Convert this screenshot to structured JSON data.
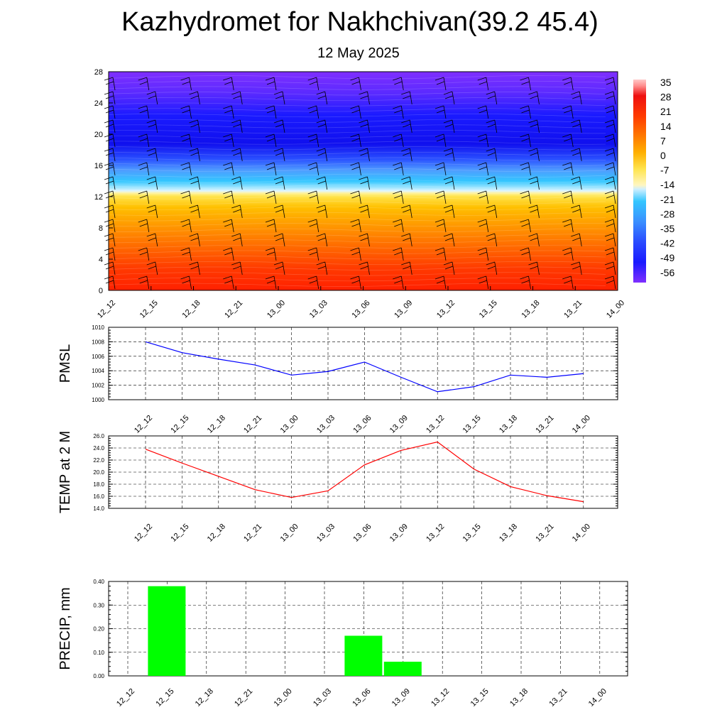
{
  "header": {
    "title": "Kazhydromet for Nakhchivan(39.2 45.4)",
    "subtitle": "12 May 2025"
  },
  "chart_data": [
    {
      "type": "heatmap",
      "description_free": true,
      "x_ticks": [
        "12_12",
        "12_15",
        "12_18",
        "12_21",
        "13_00",
        "13_03",
        "13_06",
        "13_09",
        "13_12",
        "13_15",
        "13_18",
        "13_21",
        "14_00"
      ],
      "y_ticks": [
        "0",
        "4",
        "8",
        "12",
        "16",
        "20",
        "24",
        "28"
      ],
      "ylim": [
        0,
        28
      ],
      "colorbar_labels": [
        "35",
        "28",
        "21",
        "14",
        "7",
        "0",
        "-7",
        "-14",
        "-21",
        "-28",
        "-35",
        "-42",
        "-49",
        "-56"
      ],
      "colors": {
        "band_top": "#7f2fff",
        "band_blue": "#1a1aff",
        "band_cyan": "#33c6ff",
        "band_yellow": "#ffe44d",
        "band_orange": "#ff9a00",
        "band_red": "#ff2000"
      }
    },
    {
      "type": "line",
      "ylabel": "PMSL",
      "x": [
        "12_12",
        "12_15",
        "12_18",
        "12_21",
        "13_00",
        "13_03",
        "13_06",
        "13_09",
        "13_12",
        "13_15",
        "13_18",
        "13_21",
        "14_00"
      ],
      "y_ticks": [
        "1000",
        "1002",
        "1004",
        "1006",
        "1008",
        "1010"
      ],
      "ylim": [
        1000,
        1010
      ],
      "series": [
        {
          "values": [
            1008.0,
            1006.5,
            1005.6,
            1004.8,
            1003.4,
            1003.9,
            1005.2,
            1003.1,
            1001.1,
            1001.8,
            1003.4,
            1003.1,
            1003.6
          ],
          "color": "#0000ff"
        }
      ],
      "grid": true
    },
    {
      "type": "line",
      "ylabel": "TEMP at 2 M",
      "x": [
        "12_12",
        "12_15",
        "12_18",
        "12_21",
        "13_00",
        "13_03",
        "13_06",
        "13_09",
        "13_12",
        "13_15",
        "13_18",
        "13_21",
        "14_00"
      ],
      "y_ticks": [
        "14.0",
        "16.0",
        "18.0",
        "20.0",
        "22.0",
        "24.0",
        "26.0"
      ],
      "ylim": [
        14,
        26
      ],
      "series": [
        {
          "values": [
            23.8,
            21.5,
            19.3,
            17.1,
            15.8,
            16.9,
            21.2,
            23.6,
            25.0,
            20.5,
            17.6,
            16.1,
            15.1
          ],
          "color": "#ff0000"
        }
      ],
      "grid": true
    },
    {
      "type": "bar",
      "ylabel": "PRECIP, mm",
      "categories": [
        "12_12",
        "12_15",
        "12_18",
        "12_21",
        "13_00",
        "13_03",
        "13_06",
        "13_09",
        "13_12",
        "13_15",
        "13_18",
        "13_21",
        "14_00"
      ],
      "values": [
        0,
        0.38,
        0,
        0,
        0,
        0,
        0.17,
        0.06,
        0,
        0,
        0,
        0,
        0
      ],
      "y_ticks": [
        "0.00",
        "0.10",
        "0.20",
        "0.30",
        "0.40"
      ],
      "ylim": [
        0,
        0.4
      ],
      "color": "#00ff00",
      "grid": true
    }
  ]
}
